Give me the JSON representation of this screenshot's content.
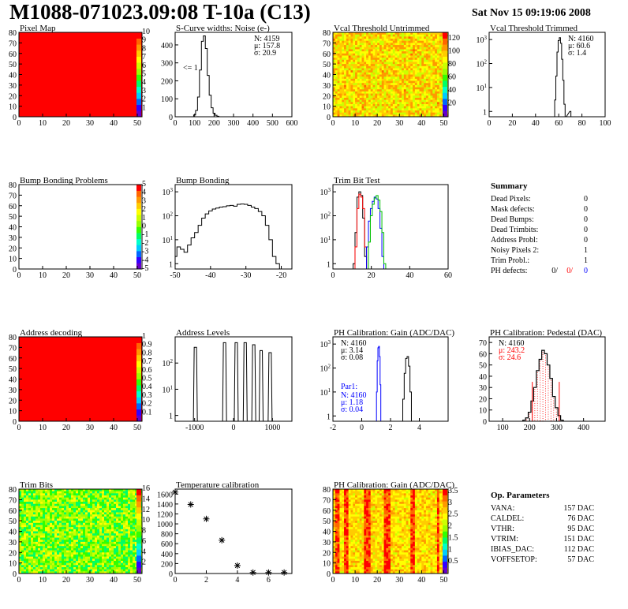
{
  "header": {
    "title": "M1088-071023.09:08 T-10a (C13)",
    "date": "Sat Nov 15 09:19:06 2008"
  },
  "colors": {
    "black": "#000000",
    "red": "#ff0000",
    "green": "#00c000",
    "blue": "#0000ff",
    "map_red": "#ff0000"
  },
  "chart_data": [
    {
      "type": "heatmap",
      "title": "Pixel Map",
      "xlim": [
        0,
        52
      ],
      "ylim": [
        0,
        80
      ],
      "x_ticks": [
        0,
        10,
        20,
        30,
        40,
        50
      ],
      "y_ticks": [
        0,
        10,
        20,
        30,
        40,
        50,
        60,
        70,
        80
      ],
      "z_range": [
        0,
        10
      ],
      "z_ticks": [
        1,
        2,
        3,
        4,
        5,
        6,
        7,
        8,
        9,
        10
      ],
      "fill": "uniform red (all pixels at maximum)",
      "colorbar": true
    },
    {
      "type": "line",
      "title": "S-Curve widths: Noise (e-)",
      "xlim": [
        0,
        600
      ],
      "ylim": [
        0,
        470
      ],
      "x_ticks": [
        0,
        100,
        200,
        300,
        400,
        500,
        600
      ],
      "y_ticks": [
        0,
        100,
        200,
        300,
        400
      ],
      "annotation": "<= 1",
      "stats": [
        "N: 4159",
        "μ: 157.8",
        "σ: 20.9"
      ],
      "series": [
        {
          "x": [
            90,
            100,
            110,
            120,
            130,
            140,
            150,
            160,
            170,
            180,
            190,
            200,
            210,
            220,
            230
          ],
          "values": [
            0,
            10,
            35,
            110,
            260,
            420,
            450,
            380,
            230,
            120,
            50,
            20,
            8,
            3,
            0
          ]
        }
      ]
    },
    {
      "type": "heatmap",
      "title": "Vcal Threshold Untrimmed",
      "xlim": [
        0,
        52
      ],
      "ylim": [
        0,
        80
      ],
      "x_ticks": [
        0,
        10,
        20,
        30,
        40,
        50
      ],
      "y_ticks": [
        0,
        10,
        20,
        30,
        40,
        50,
        60,
        70,
        80
      ],
      "z_range": [
        0,
        130
      ],
      "z_ticks": [
        20,
        40,
        60,
        80,
        100,
        120
      ],
      "fill": "orange/yellow noisy",
      "colorbar": true
    },
    {
      "type": "line",
      "title": "Vcal Threshold Trimmed",
      "log_y": true,
      "xlim": [
        0,
        100
      ],
      "ylim": [
        0.6,
        2000
      ],
      "x_ticks": [
        0,
        20,
        40,
        60,
        80,
        100
      ],
      "y_ticks": [
        1,
        10,
        100,
        1000
      ],
      "stats": [
        "N: 4160",
        "μ: 60.6",
        "σ: 1.4"
      ],
      "series": [
        {
          "x": [
            56,
            57,
            58,
            59,
            60,
            61,
            62,
            63,
            64,
            65,
            66,
            70,
            71
          ],
          "values": [
            0,
            3,
            30,
            300,
            900,
            1200,
            700,
            150,
            20,
            2,
            0,
            1,
            0
          ]
        }
      ]
    },
    {
      "type": "heatmap",
      "title": "Bump Bonding Problems",
      "xlim": [
        0,
        52
      ],
      "ylim": [
        0,
        80
      ],
      "x_ticks": [
        0,
        10,
        20,
        30,
        40,
        50
      ],
      "y_ticks": [
        0,
        10,
        20,
        30,
        40,
        50,
        60,
        70,
        80
      ],
      "z_range": [
        -5,
        5
      ],
      "z_ticks": [
        -5,
        -4,
        -3,
        -2,
        -1,
        0,
        1,
        2,
        3,
        4,
        5
      ],
      "fill": "empty",
      "colorbar": true
    },
    {
      "type": "line",
      "title": "Bump Bonding",
      "log_y": true,
      "xlim": [
        -50,
        -17
      ],
      "ylim": [
        0.6,
        2000
      ],
      "x_ticks": [
        -50,
        -40,
        -30,
        -20
      ],
      "y_ticks": [
        1,
        10,
        100,
        1000
      ],
      "series": [
        {
          "x": [
            -50,
            -49,
            -48,
            -47,
            -46,
            -45,
            -44,
            -43,
            -42,
            -41,
            -40,
            -39,
            -38,
            -37,
            -36,
            -35,
            -34,
            -33,
            -32,
            -31,
            -30,
            -29,
            -28,
            -27,
            -26,
            -25,
            -24,
            -23,
            -22,
            -21,
            -20
          ],
          "values": [
            2,
            5,
            4,
            3,
            6,
            12,
            20,
            40,
            80,
            120,
            160,
            190,
            210,
            230,
            240,
            260,
            270,
            250,
            300,
            310,
            300,
            270,
            230,
            200,
            150,
            100,
            40,
            10,
            2,
            1,
            0.6
          ]
        }
      ]
    },
    {
      "type": "line",
      "title": "Trim Bit Test",
      "log_y": true,
      "xlim": [
        0,
        60
      ],
      "ylim": [
        0.6,
        2000
      ],
      "x_ticks": [
        0,
        20,
        40,
        60
      ],
      "y_ticks": [
        1,
        10,
        100,
        1000
      ],
      "series": [
        {
          "color": "black",
          "x": [
            10,
            11,
            12,
            13,
            14,
            15,
            16,
            17,
            18
          ],
          "values": [
            0.6,
            1,
            20,
            600,
            1000,
            700,
            80,
            2,
            0.6
          ]
        },
        {
          "color": "red",
          "x": [
            11,
            12,
            13,
            14,
            15,
            16,
            17,
            18
          ],
          "values": [
            0.6,
            5,
            200,
            800,
            600,
            200,
            5,
            0.6
          ]
        },
        {
          "color": "blue",
          "x": [
            17,
            18,
            19,
            20,
            21,
            22,
            23,
            24,
            25,
            26,
            27
          ],
          "values": [
            0.6,
            5,
            60,
            200,
            400,
            600,
            500,
            200,
            30,
            2,
            0.6
          ]
        },
        {
          "color": "green",
          "x": [
            18,
            19,
            20,
            21,
            22,
            23,
            24,
            25,
            26,
            27,
            28,
            60
          ],
          "values": [
            0.6,
            8,
            100,
            300,
            550,
            700,
            450,
            150,
            20,
            1,
            0.6,
            0.6
          ]
        }
      ]
    },
    {
      "type": "table",
      "title": "Summary",
      "rows": [
        {
          "label": "Dead Pixels:",
          "value": "0"
        },
        {
          "label": "Mask defects:",
          "value": "0"
        },
        {
          "label": "Dead Bumps:",
          "value": "0"
        },
        {
          "label": "Dead Trimbits:",
          "value": "0"
        },
        {
          "label": "Address Probl:",
          "value": "0"
        },
        {
          "label": "Noisy Pixels 2:",
          "value": "1"
        },
        {
          "label": "Trim Probl.:",
          "value": "1"
        }
      ],
      "ph_defects": {
        "label": "PH defects:",
        "values": [
          "0/",
          "0/",
          "0"
        ]
      }
    },
    {
      "type": "heatmap",
      "title": "Address decoding",
      "xlim": [
        0,
        52
      ],
      "ylim": [
        0,
        80
      ],
      "x_ticks": [
        0,
        10,
        20,
        30,
        40,
        50
      ],
      "y_ticks": [
        0,
        10,
        20,
        30,
        40,
        50,
        60,
        70,
        80
      ],
      "z_range": [
        0,
        1
      ],
      "z_ticks": [
        0.1,
        0.2,
        0.3,
        0.4,
        0.5,
        0.6,
        0.7,
        0.8,
        0.9,
        1
      ],
      "fill": "uniform red (all pixels at maximum)",
      "colorbar": true
    },
    {
      "type": "line",
      "title": "Address Levels",
      "log_y": true,
      "xlim": [
        -1500,
        1500
      ],
      "ylim": [
        0.6,
        1000
      ],
      "x_ticks": [
        -1000,
        0,
        1000
      ],
      "y_ticks": [
        1,
        10,
        100
      ],
      "peaks": [
        -970,
        -220,
        80,
        310,
        530,
        720,
        950
      ],
      "peak_heights": [
        400,
        600,
        600,
        600,
        500,
        300,
        250
      ]
    },
    {
      "type": "line",
      "title": "PH Calibration: Gain (ADC/DAC)",
      "log_y": true,
      "xlim": [
        -2,
        6
      ],
      "ylim": [
        0.6,
        2000
      ],
      "x_ticks": [
        -2,
        0,
        2,
        4
      ],
      "y_ticks": [
        1,
        10,
        100,
        1000
      ],
      "stats": [
        "N: 4160",
        "μ: 3.14",
        "σ: 0.08"
      ],
      "stats2_title": "Par1:",
      "stats2": [
        "N: 4160",
        "μ: 1.18",
        "σ: 0.04"
      ],
      "series": [
        {
          "color": "black",
          "x": [
            2.8,
            2.9,
            3.0,
            3.1,
            3.2,
            3.3,
            3.4,
            3.5
          ],
          "values": [
            0.6,
            5,
            60,
            250,
            300,
            120,
            10,
            0.6
          ]
        },
        {
          "color": "blue",
          "x": [
            1.0,
            1.05,
            1.1,
            1.15,
            1.2,
            1.25,
            1.3,
            1.35
          ],
          "values": [
            0.6,
            10,
            200,
            700,
            800,
            300,
            20,
            0.6
          ]
        }
      ]
    },
    {
      "type": "line",
      "title": "PH Calibration: Pedestal (DAC)",
      "xlim": [
        50,
        480
      ],
      "ylim": [
        0,
        75
      ],
      "x_ticks": [
        100,
        200,
        300,
        400
      ],
      "y_ticks": [
        0,
        10,
        20,
        30,
        40,
        50,
        60,
        70
      ],
      "stats": [
        "N: 4160"
      ],
      "stats_red": [
        "μ: 243.2",
        "σ: 24.6"
      ],
      "fit_color": "red",
      "series": [
        {
          "x": [
            180,
            190,
            200,
            210,
            220,
            230,
            240,
            250,
            260,
            270,
            280,
            290,
            300,
            310,
            320
          ],
          "values": [
            1,
            3,
            8,
            18,
            30,
            45,
            55,
            63,
            60,
            50,
            38,
            22,
            12,
            5,
            1
          ]
        }
      ]
    },
    {
      "type": "heatmap",
      "title": "Trim Bits",
      "xlim": [
        0,
        52
      ],
      "ylim": [
        0,
        80
      ],
      "x_ticks": [
        0,
        10,
        20,
        30,
        40,
        50
      ],
      "y_ticks": [
        0,
        10,
        20,
        30,
        40,
        50,
        60,
        70,
        80
      ],
      "z_range": [
        0,
        16
      ],
      "z_ticks": [
        2,
        4,
        6,
        8,
        10,
        12,
        14,
        16
      ],
      "fill": "green noisy",
      "colorbar": true
    },
    {
      "type": "scatter",
      "title": "Temperature calibration",
      "xlim": [
        0,
        7.5
      ],
      "ylim": [
        0,
        1700
      ],
      "x_ticks": [
        0,
        2,
        4,
        6
      ],
      "y_ticks": [
        0,
        200,
        400,
        600,
        800,
        1000,
        1200,
        1400,
        1600
      ],
      "x": [
        0,
        1,
        2,
        3,
        4,
        5,
        6,
        7
      ],
      "values": [
        1640,
        1390,
        1100,
        670,
        160,
        20,
        20,
        20
      ]
    },
    {
      "type": "heatmap",
      "title": "PH Calibration: Gain (ADC/DAC)",
      "xlim": [
        0,
        52
      ],
      "ylim": [
        0,
        80
      ],
      "x_ticks": [
        0,
        10,
        20,
        30,
        40,
        50
      ],
      "y_ticks": [
        0,
        10,
        20,
        30,
        40,
        50,
        60,
        70,
        80
      ],
      "z_range": [
        0,
        3.6
      ],
      "z_ticks": [
        0.5,
        1,
        1.5,
        2,
        2.5,
        3,
        3.5
      ],
      "fill": "striped red/orange/yellow by column",
      "colorbar": true
    },
    {
      "type": "table",
      "title": "Op. Parameters",
      "rows": [
        {
          "label": "VANA:",
          "value": "157 DAC"
        },
        {
          "label": "CALDEL:",
          "value": "76 DAC"
        },
        {
          "label": "VTHR:",
          "value": "95 DAC"
        },
        {
          "label": "VTRIM:",
          "value": "151 DAC"
        },
        {
          "label": "IBIAS_DAC:",
          "value": "112 DAC"
        },
        {
          "label": "VOFFSETOP:",
          "value": "57 DAC"
        }
      ]
    }
  ]
}
